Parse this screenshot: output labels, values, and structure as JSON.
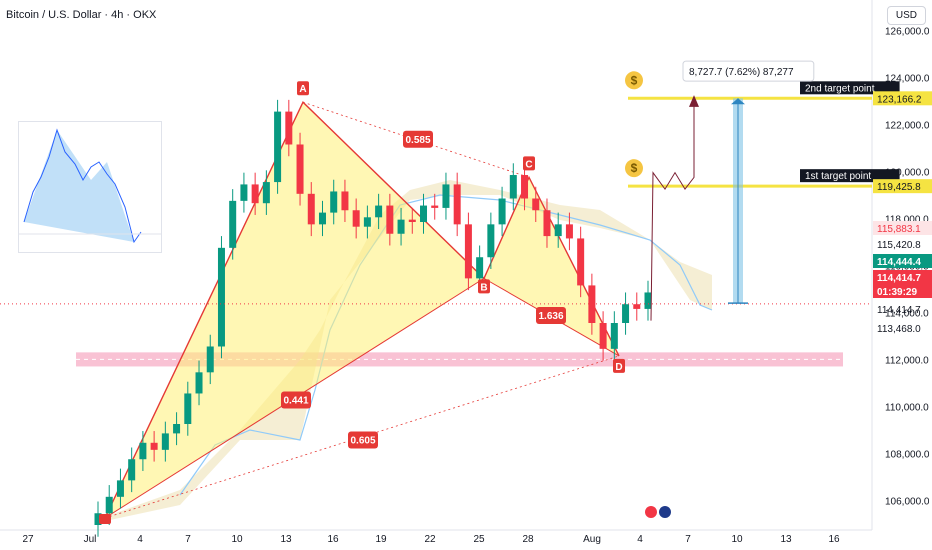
{
  "header": {
    "title": "Bitcoin / U.S. Dollar · 4h · OKX",
    "currency": "USD"
  },
  "chart_data": {
    "type": "candlestick",
    "ylim": [
      105000,
      126500
    ],
    "x_ticks": [
      "27",
      "Jul",
      "4",
      "7",
      "10",
      "13",
      "16",
      "19",
      "22",
      "25",
      "28",
      "Aug",
      "4",
      "7",
      "10",
      "13",
      "16"
    ],
    "y_ticks": [
      "126,000.0",
      "124,000.0",
      "122,000.0",
      "120,000.0",
      "118,000.0",
      "116,000.0",
      "114,000.0",
      "112,000.0",
      "110,000.0",
      "108,000.0",
      "106,000.0"
    ],
    "price_close": [
      105500,
      106200,
      106900,
      107800,
      108500,
      108200,
      108900,
      109300,
      110600,
      111500,
      112600,
      116800,
      118800,
      119500,
      118700,
      119600,
      122600,
      121200,
      119100,
      117800,
      118300,
      119200,
      118400,
      117700,
      118100,
      118600,
      117400,
      118000,
      117900,
      118600,
      118500,
      119500,
      117800,
      115500,
      116400,
      117800,
      118900,
      119900,
      118900,
      118400,
      117300,
      117800,
      117200,
      115200,
      113600,
      112500,
      113600,
      114400,
      114200,
      114900
    ],
    "harmonic_points": [
      {
        "label": "A",
        "price": 123000
      },
      {
        "label": "B",
        "price": 115500
      },
      {
        "label": "C",
        "price": 119800
      },
      {
        "label": "D",
        "price": 112200
      }
    ],
    "ratio_labels": [
      "0.585",
      "0.441",
      "1.636",
      "0.605"
    ],
    "targets": [
      {
        "name": "1st target point",
        "price": 119425.8,
        "label": "119,425.8"
      },
      {
        "name": "2nd target point",
        "price": 123166.2,
        "label": "123,166.2"
      }
    ],
    "measure_label": "8,727.7 (7.62%) 87,277",
    "price_tags": [
      {
        "text": "115,883.1",
        "price": 115883.1,
        "color": "#f23645",
        "style": "outline"
      },
      {
        "text": "115,420.8",
        "price": 115420.8,
        "color": "#ffffff",
        "style": "plain"
      },
      {
        "text": "114,444.4",
        "price": 114444.4,
        "color": "#089981",
        "style": "filled"
      },
      {
        "text": "114,414.7",
        "price": 114414.7,
        "color": "#f23645",
        "style": "filled"
      },
      {
        "text": "01:39:29",
        "price": 113900,
        "color": "#f23645",
        "style": "filled"
      },
      {
        "text": "114,414.7",
        "price": 113750,
        "color": "#ffffff",
        "style": "plain"
      },
      {
        "text": "113,468.0",
        "price": 113468,
        "color": "#ffffff",
        "style": "plain"
      }
    ],
    "support_zone": [
      111750,
      112350
    ]
  },
  "colors": {
    "bull": "#089981",
    "bear": "#f23645",
    "pattern_fill": "#fff176",
    "pattern_line": "#e53935",
    "target_line": "#f5e342",
    "zone": "#f48fb1",
    "measure": "#7ec3e6",
    "cloud": "#c8e6ff"
  }
}
